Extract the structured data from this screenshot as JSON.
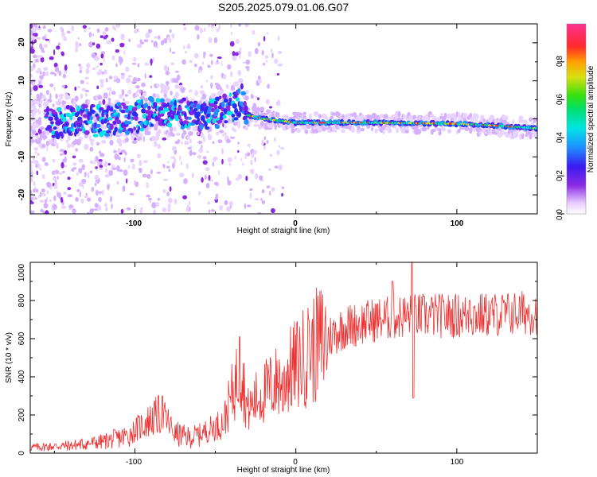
{
  "title": "S205.2025.079.01.06.G07",
  "chart_data": [
    {
      "type": "heatmap",
      "xlabel": "Height of straight line (km)",
      "ylabel": "Frequency (Hz)",
      "xlim": [
        -165,
        150
      ],
      "ylim": [
        -25,
        25
      ],
      "xticks": [
        "-100",
        "0",
        "100"
      ],
      "yticks": [
        "20",
        "10",
        "0",
        "-10",
        "-20"
      ],
      "colorbar": {
        "label": "Normalized spectral amplitude",
        "range": [
          0.0,
          1.0
        ],
        "ticks": [
          "0.0",
          "0.2",
          "0.4",
          "0.6",
          "0.8"
        ]
      },
      "ridge": [
        {
          "x": -165,
          "y": -1.0
        },
        {
          "x": -120,
          "y": -0.5
        },
        {
          "x": -100,
          "y": 0.5
        },
        {
          "x": -80,
          "y": 2.5
        },
        {
          "x": -60,
          "y": 0.5
        },
        {
          "x": -40,
          "y": 2.5
        },
        {
          "x": -33,
          "y": 6.0
        },
        {
          "x": -30,
          "y": 1.0
        },
        {
          "x": -20,
          "y": 0.0
        },
        {
          "x": 0,
          "y": -1.0
        },
        {
          "x": 50,
          "y": -1.0
        },
        {
          "x": 100,
          "y": -1.3
        },
        {
          "x": 125,
          "y": -1.8
        },
        {
          "x": 150,
          "y": -2.5
        }
      ]
    },
    {
      "type": "line",
      "xlabel": "Height of straight line (km)",
      "ylabel": "SNR (10 * v/v)",
      "xlim": [
        -165,
        150
      ],
      "ylim": [
        0,
        1000
      ],
      "xticks": [
        "-100",
        "0",
        "100"
      ],
      "yticks": [
        "1000",
        "800",
        "600",
        "400",
        "200",
        "0"
      ],
      "color": "#ee3030",
      "envelope": [
        {
          "x": -165,
          "y": 30
        },
        {
          "x": -140,
          "y": 40
        },
        {
          "x": -120,
          "y": 60
        },
        {
          "x": -105,
          "y": 90
        },
        {
          "x": -95,
          "y": 150
        },
        {
          "x": -85,
          "y": 200
        },
        {
          "x": -80,
          "y": 170
        },
        {
          "x": -75,
          "y": 100
        },
        {
          "x": -65,
          "y": 80
        },
        {
          "x": -55,
          "y": 120
        },
        {
          "x": -45,
          "y": 160
        },
        {
          "x": -38,
          "y": 350
        },
        {
          "x": -34,
          "y": 450
        },
        {
          "x": -30,
          "y": 220
        },
        {
          "x": -25,
          "y": 280
        },
        {
          "x": -15,
          "y": 350
        },
        {
          "x": -5,
          "y": 420
        },
        {
          "x": 5,
          "y": 500
        },
        {
          "x": 15,
          "y": 580
        },
        {
          "x": 30,
          "y": 660
        },
        {
          "x": 50,
          "y": 700
        },
        {
          "x": 70,
          "y": 720
        },
        {
          "x": 90,
          "y": 720
        },
        {
          "x": 110,
          "y": 720
        },
        {
          "x": 130,
          "y": 730
        },
        {
          "x": 150,
          "y": 740
        }
      ],
      "spikes": [
        {
          "x": -83,
          "y": 300
        },
        {
          "x": -35,
          "y": 610
        },
        {
          "x": 8,
          "y": 700
        },
        {
          "x": 60,
          "y": 900
        },
        {
          "x": 72,
          "y": 1000
        },
        {
          "x": 73,
          "y": 290
        },
        {
          "x": -8,
          "y": 220
        },
        {
          "x": 108,
          "y": 800
        }
      ]
    }
  ]
}
